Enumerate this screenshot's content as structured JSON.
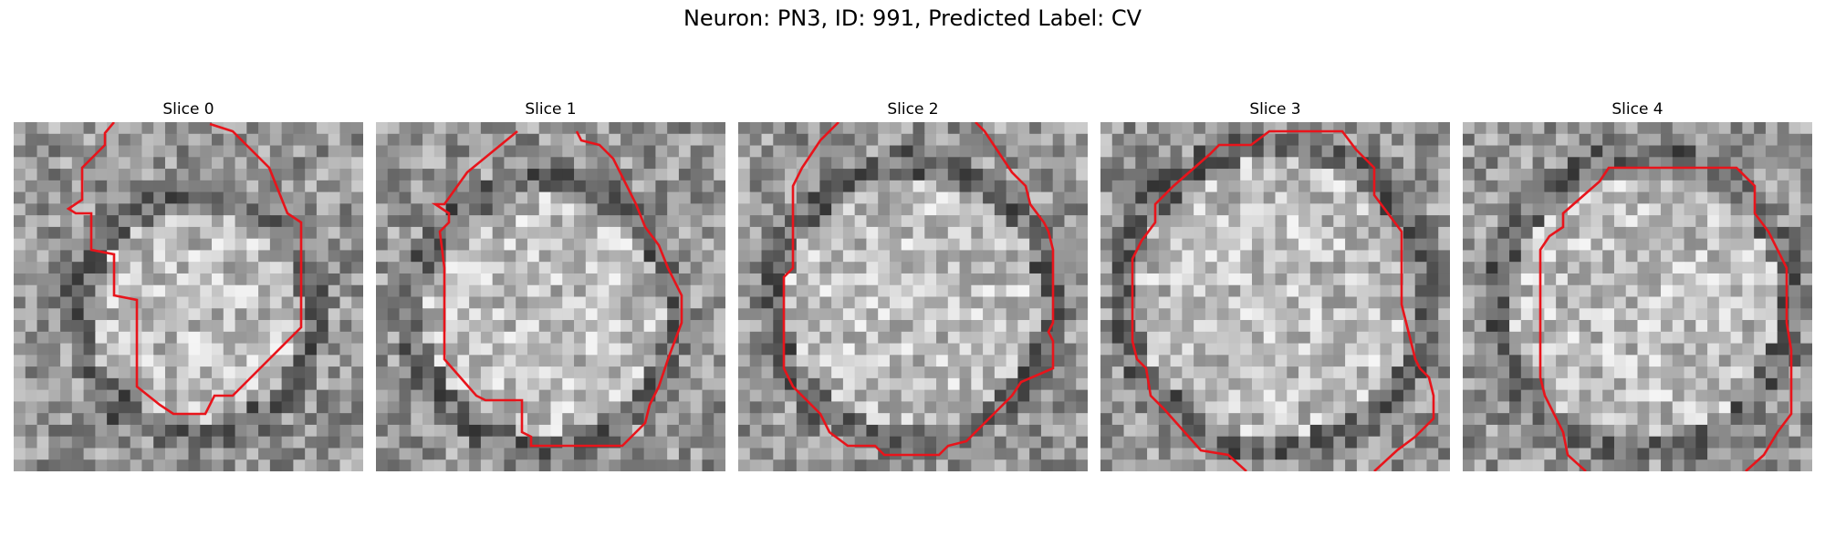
{
  "figure": {
    "title": "Neuron: PN3, ID: 991, Predicted Label: CV",
    "contour_color": "#e8141b"
  },
  "panels": [
    {
      "title": "Slice 0"
    },
    {
      "title": "Slice 1"
    },
    {
      "title": "Slice 2"
    },
    {
      "title": "Slice 3"
    },
    {
      "title": "Slice 4"
    }
  ]
}
